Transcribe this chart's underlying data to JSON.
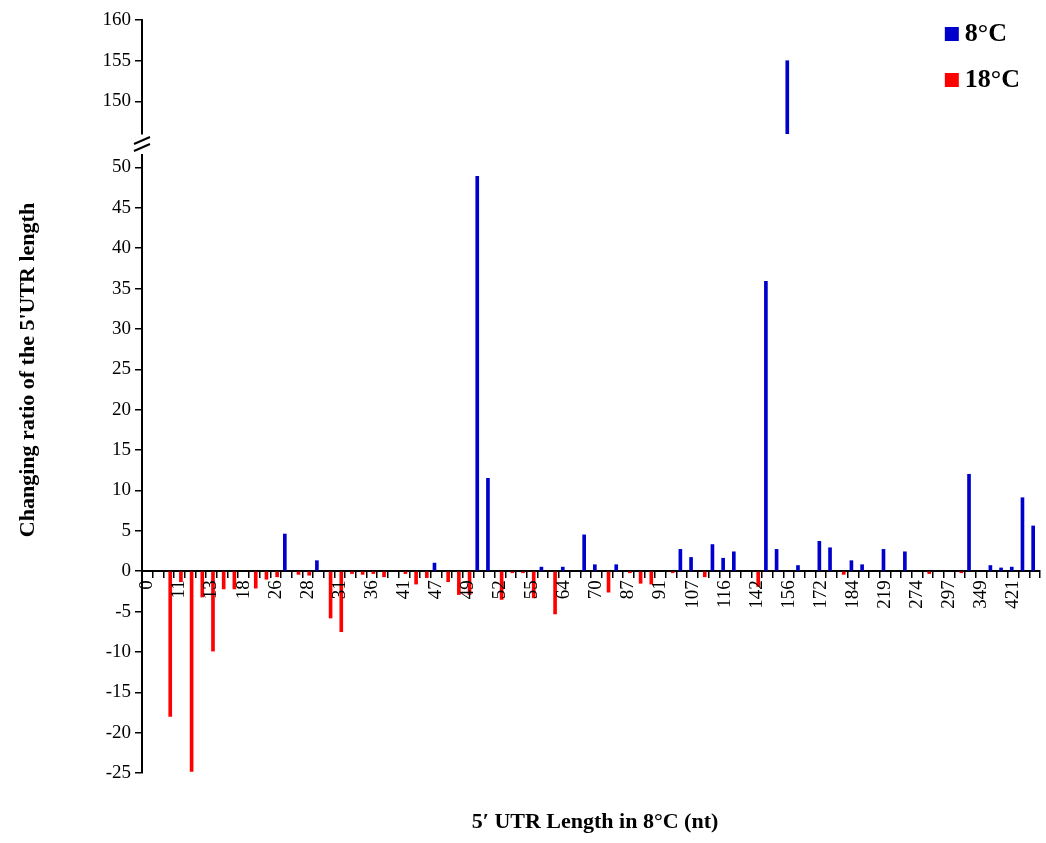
{
  "chart_data": [
    {
      "type": "bar",
      "categories": [
        "0",
        null,
        null,
        "11",
        null,
        null,
        "13",
        null,
        null,
        "18",
        null,
        null,
        "26",
        null,
        null,
        "28",
        null,
        null,
        "31",
        null,
        null,
        "36",
        null,
        null,
        "41",
        null,
        null,
        "47",
        null,
        null,
        "49",
        null,
        null,
        "52",
        null,
        null,
        "55",
        null,
        null,
        "64",
        null,
        null,
        "70",
        null,
        null,
        "87",
        null,
        null,
        "91",
        null,
        null,
        "107",
        null,
        null,
        "116",
        null,
        null,
        "142",
        null,
        null,
        "156",
        null,
        null,
        "172",
        null,
        null,
        "184",
        null,
        null,
        "219",
        null,
        null,
        "274",
        null,
        null,
        "297",
        null,
        null,
        "349",
        null,
        null,
        "421",
        null,
        null
      ],
      "series": [
        {
          "name": "8°C",
          "color": "#0000cc",
          "values": [
            null,
            null,
            null,
            null,
            null,
            null,
            null,
            null,
            null,
            null,
            null,
            null,
            null,
            null,
            null,
            null,
            null,
            null,
            null,
            null,
            null,
            null,
            null,
            null,
            null,
            null,
            null,
            null,
            null,
            null,
            null,
            null,
            null,
            null,
            null,
            null,
            null,
            null,
            null,
            null,
            null,
            null,
            null,
            null,
            null,
            null,
            null,
            null,
            null,
            null,
            null,
            null,
            null,
            null,
            null,
            null,
            null,
            null,
            null,
            null,
            155,
            null,
            null,
            null,
            null,
            null,
            null,
            null,
            null,
            null,
            null,
            null,
            null,
            null,
            null,
            null,
            null,
            null,
            null,
            null,
            null,
            null,
            null,
            null
          ]
        },
        {
          "name": "18°C",
          "color": "#ff0000",
          "values": [
            null,
            null,
            null,
            null,
            null,
            null,
            null,
            null,
            null,
            null,
            null,
            null,
            null,
            null,
            null,
            null,
            null,
            null,
            null,
            null,
            null,
            null,
            null,
            null,
            null,
            null,
            null,
            null,
            null,
            null,
            null,
            null,
            null,
            null,
            null,
            null,
            null,
            null,
            null,
            null,
            null,
            null,
            null,
            null,
            null,
            null,
            null,
            null,
            null,
            null,
            null,
            null,
            null,
            null,
            null,
            null,
            null,
            null,
            null,
            null,
            null,
            null,
            null,
            null,
            null,
            null,
            null,
            null,
            null,
            null,
            null,
            null,
            null,
            null,
            null,
            null,
            null,
            null,
            null,
            null,
            null,
            null,
            null,
            null
          ]
        }
      ],
      "ylim": [
        146,
        160
      ],
      "yticks": [
        150,
        155,
        160
      ],
      "tick_labels": "y",
      "legend": "top right",
      "grid": false
    },
    {
      "type": "bar",
      "xlabel": "5′ UTR Length in 8°C (nt)",
      "ylabel": "Changing ratio of the 5'UTR length",
      "categories": [
        "0",
        null,
        null,
        "11",
        null,
        null,
        "13",
        null,
        null,
        "18",
        null,
        null,
        "26",
        null,
        null,
        "28",
        null,
        null,
        "31",
        null,
        null,
        "36",
        null,
        null,
        "41",
        null,
        null,
        "47",
        null,
        null,
        "49",
        null,
        null,
        "52",
        null,
        null,
        "55",
        null,
        null,
        "64",
        null,
        null,
        "70",
        null,
        null,
        "87",
        null,
        null,
        "91",
        null,
        null,
        "107",
        null,
        null,
        "116",
        null,
        null,
        "142",
        null,
        null,
        "156",
        null,
        null,
        "172",
        null,
        null,
        "184",
        null,
        null,
        "219",
        null,
        null,
        "274",
        null,
        null,
        "297",
        null,
        null,
        "349",
        null,
        null,
        "421",
        null,
        null
      ],
      "series": [
        {
          "color": "#0000cc",
          "values": [
            null,
            null,
            null,
            null,
            null,
            null,
            null,
            null,
            null,
            null,
            null,
            null,
            null,
            4.6,
            null,
            null,
            1.3,
            null,
            null,
            null,
            null,
            null,
            null,
            null,
            null,
            null,
            null,
            1.0,
            null,
            null,
            null,
            48.9,
            11.5,
            null,
            null,
            null,
            null,
            0.5,
            null,
            0.5,
            null,
            4.5,
            0.8,
            null,
            0.8,
            null,
            null,
            null,
            null,
            null,
            2.7,
            1.7,
            null,
            3.3,
            1.6,
            2.4,
            null,
            null,
            35.9,
            2.7,
            null,
            0.7,
            null,
            3.7,
            2.9,
            null,
            1.3,
            0.8,
            null,
            2.7,
            null,
            2.4,
            null,
            null,
            null,
            null,
            null,
            12.0,
            null,
            0.7,
            0.4,
            0.5,
            9.1,
            5.6
          ]
        },
        {
          "color": "#ff0000",
          "values": [
            null,
            null,
            -18.0,
            -1.3,
            -24.8,
            -3.2,
            -9.9,
            -2.2,
            -2.2,
            null,
            -2.1,
            -1.0,
            -0.7,
            null,
            -0.4,
            -0.5,
            null,
            -5.8,
            -7.5,
            -0.3,
            -0.4,
            -0.3,
            -0.7,
            null,
            -0.3,
            -1.6,
            -0.8,
            null,
            -1.3,
            -2.9,
            -2.9,
            null,
            null,
            -3.5,
            -0.2,
            -0.2,
            -3.3,
            null,
            -5.3,
            null,
            null,
            null,
            null,
            -2.6,
            null,
            -0.2,
            -1.5,
            -1.6,
            null,
            -0.2,
            null,
            null,
            -0.7,
            null,
            null,
            null,
            null,
            -1.9,
            null,
            null,
            null,
            null,
            null,
            null,
            null,
            -0.4,
            null,
            null,
            null,
            null,
            null,
            null,
            null,
            -0.3,
            null,
            null,
            -0.2,
            null,
            null,
            null,
            null,
            null,
            null,
            null
          ]
        }
      ],
      "ylim": [
        -25,
        51.5
      ],
      "yticks": [
        -25,
        -20,
        -15,
        -10,
        -5,
        0,
        5,
        10,
        15,
        20,
        25,
        30,
        35,
        40,
        45,
        50
      ],
      "grid": false
    }
  ]
}
